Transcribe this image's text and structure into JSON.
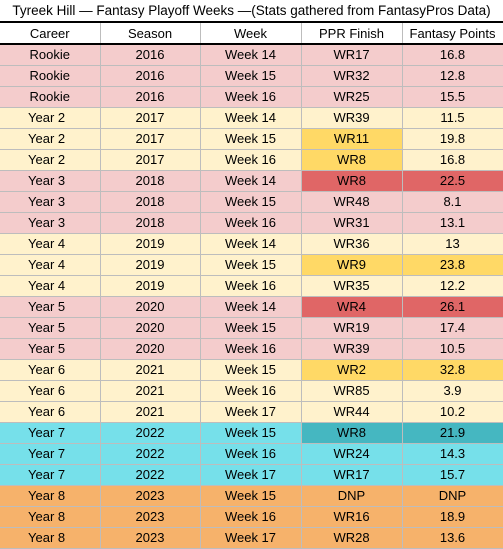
{
  "title": "Tyreek Hill — Fantasy Playoff Weeks —(Stats gathered from FantasyPros Data)",
  "columns": [
    "Career",
    "Season",
    "Week",
    "PPR Finish",
    "Fantasy Points"
  ],
  "colors": {
    "pink": "#f4cccc",
    "yellow": "#fff2cc",
    "cyan": "#76e0ea",
    "orange": "#f6b26b",
    "highlight_red": "#e06666",
    "highlight_gold": "#ffd966",
    "highlight_teal": "#45b7c1"
  },
  "rows": [
    {
      "career": "Rookie",
      "season": "2016",
      "week": "Week 14",
      "finish": "WR17",
      "points": "16.8",
      "band": "pink",
      "hl": ""
    },
    {
      "career": "Rookie",
      "season": "2016",
      "week": "Week 15",
      "finish": "WR32",
      "points": "12.8",
      "band": "pink",
      "hl": ""
    },
    {
      "career": "Rookie",
      "season": "2016",
      "week": "Week 16",
      "finish": "WR25",
      "points": "15.5",
      "band": "pink",
      "hl": ""
    },
    {
      "career": "Year 2",
      "season": "2017",
      "week": "Week 14",
      "finish": "WR39",
      "points": "11.5",
      "band": "yellow",
      "hl": ""
    },
    {
      "career": "Year 2",
      "season": "2017",
      "week": "Week 15",
      "finish": "WR11",
      "points": "19.8",
      "band": "yellow",
      "hl": "gold-finish"
    },
    {
      "career": "Year 2",
      "season": "2017",
      "week": "Week 16",
      "finish": "WR8",
      "points": "16.8",
      "band": "yellow",
      "hl": "gold-finish"
    },
    {
      "career": "Year 3",
      "season": "2018",
      "week": "Week 14",
      "finish": "WR8",
      "points": "22.5",
      "band": "pink",
      "hl": "red"
    },
    {
      "career": "Year 3",
      "season": "2018",
      "week": "Week 15",
      "finish": "WR48",
      "points": "8.1",
      "band": "pink",
      "hl": ""
    },
    {
      "career": "Year 3",
      "season": "2018",
      "week": "Week 16",
      "finish": "WR31",
      "points": "13.1",
      "band": "pink",
      "hl": ""
    },
    {
      "career": "Year 4",
      "season": "2019",
      "week": "Week 14",
      "finish": "WR36",
      "points": "13",
      "band": "yellow",
      "hl": ""
    },
    {
      "career": "Year 4",
      "season": "2019",
      "week": "Week 15",
      "finish": "WR9",
      "points": "23.8",
      "band": "yellow",
      "hl": "gold"
    },
    {
      "career": "Year 4",
      "season": "2019",
      "week": "Week 16",
      "finish": "WR35",
      "points": "12.2",
      "band": "yellow",
      "hl": ""
    },
    {
      "career": "Year 5",
      "season": "2020",
      "week": "Week 14",
      "finish": "WR4",
      "points": "26.1",
      "band": "pink",
      "hl": "red"
    },
    {
      "career": "Year 5",
      "season": "2020",
      "week": "Week 15",
      "finish": "WR19",
      "points": "17.4",
      "band": "pink",
      "hl": ""
    },
    {
      "career": "Year 5",
      "season": "2020",
      "week": "Week 16",
      "finish": "WR39",
      "points": "10.5",
      "band": "pink",
      "hl": ""
    },
    {
      "career": "Year 6",
      "season": "2021",
      "week": "Week 15",
      "finish": "WR2",
      "points": "32.8",
      "band": "yellow",
      "hl": "gold"
    },
    {
      "career": "Year 6",
      "season": "2021",
      "week": "Week 16",
      "finish": "WR85",
      "points": "3.9",
      "band": "yellow",
      "hl": ""
    },
    {
      "career": "Year 6",
      "season": "2021",
      "week": "Week 17",
      "finish": "WR44",
      "points": "10.2",
      "band": "yellow",
      "hl": ""
    },
    {
      "career": "Year 7",
      "season": "2022",
      "week": "Week 15",
      "finish": "WR8",
      "points": "21.9",
      "band": "cyan",
      "hl": "teal"
    },
    {
      "career": "Year 7",
      "season": "2022",
      "week": "Week 16",
      "finish": "WR24",
      "points": "14.3",
      "band": "cyan",
      "hl": ""
    },
    {
      "career": "Year 7",
      "season": "2022",
      "week": "Week 17",
      "finish": "WR17",
      "points": "15.7",
      "band": "cyan",
      "hl": ""
    },
    {
      "career": "Year 8",
      "season": "2023",
      "week": "Week 15",
      "finish": "DNP",
      "points": "DNP",
      "band": "orange",
      "hl": ""
    },
    {
      "career": "Year 8",
      "season": "2023",
      "week": "Week 16",
      "finish": "WR16",
      "points": "18.9",
      "band": "orange",
      "hl": ""
    },
    {
      "career": "Year 8",
      "season": "2023",
      "week": "Week 17",
      "finish": "WR28",
      "points": "13.6",
      "band": "orange",
      "hl": ""
    }
  ]
}
